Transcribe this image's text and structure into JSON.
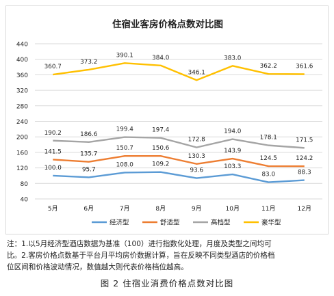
{
  "chart_data": {
    "type": "line",
    "title": "住宿业客房价格点数对比图",
    "categories": [
      "5月",
      "6月",
      "7月",
      "8月",
      "9月",
      "10月",
      "11月",
      "12月"
    ],
    "ylim": [
      40,
      440
    ],
    "yticks": [
      "40",
      "80",
      "120",
      "160",
      "200",
      "240",
      "280",
      "320",
      "360",
      "400",
      "440"
    ],
    "grid": true,
    "legend_position": "bottom",
    "series": [
      {
        "name": "经济型",
        "color": "#5B9BD5",
        "values": [
          100.0,
          95.7,
          108.0,
          109.2,
          93.6,
          103.3,
          83.0,
          88.3
        ],
        "labels": [
          "100.0",
          "95.7",
          "108.0",
          "109.2",
          "93.6",
          "103.3",
          "83.0",
          "88.3"
        ]
      },
      {
        "name": "舒适型",
        "color": "#ED7D31",
        "values": [
          141.5,
          135.7,
          150.7,
          150.6,
          130.3,
          143.9,
          124.5,
          124.2
        ],
        "labels": [
          "141.5",
          "135.7",
          "150.7",
          "150.6",
          "130.3",
          "143.9",
          "124.5",
          "124.2"
        ]
      },
      {
        "name": "高档型",
        "color": "#A5A5A5",
        "values": [
          190.2,
          186.6,
          199.4,
          197.4,
          172.8,
          194.0,
          178.1,
          171.5
        ],
        "labels": [
          "190.2",
          "186.6",
          "199.4",
          "197.4",
          "172.8",
          "194.0",
          "178.1",
          "171.5"
        ]
      },
      {
        "name": "豪华型",
        "color": "#FFC000",
        "values": [
          360.7,
          373.2,
          390.1,
          384.0,
          346.1,
          383.0,
          362.2,
          361.6
        ],
        "labels": [
          "360.7",
          "373.2",
          "390.1",
          "384.0",
          "346.1",
          "383.0",
          "362.2",
          "361.6"
        ]
      }
    ]
  },
  "note": {
    "line1": "注：1.以5月经济型酒店数据为基准（100）进行指数化处理，月度及类型之间均可",
    "line2": "比。2.客房价格点数基于平台月平均房价数据计算，旨在反映不同类型酒店的价格档",
    "line3": "位区间和价格波动情况，数值越大则代表价格档位越高。"
  },
  "caption": "图 2  住宿业消费价格点数对比图"
}
